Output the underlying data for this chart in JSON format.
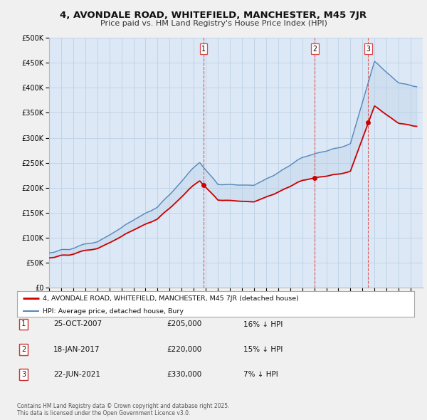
{
  "title1": "4, AVONDALE ROAD, WHITEFIELD, MANCHESTER, M45 7JR",
  "title2": "Price paid vs. HM Land Registry's House Price Index (HPI)",
  "ylim": [
    0,
    500000
  ],
  "yticks": [
    0,
    50000,
    100000,
    150000,
    200000,
    250000,
    300000,
    350000,
    400000,
    450000,
    500000
  ],
  "ytick_labels": [
    "£0",
    "£50K",
    "£100K",
    "£150K",
    "£200K",
    "£250K",
    "£300K",
    "£350K",
    "£400K",
    "£450K",
    "£500K"
  ],
  "background_color": "#f0f0f0",
  "plot_bg": "#dce8f5",
  "grid_color": "#c0d4e8",
  "sale_color": "#cc0000",
  "hpi_color": "#5588bb",
  "fill_color": "#b8d0e8",
  "sale_dates": [
    2007.82,
    2017.05,
    2021.47
  ],
  "sale_prices": [
    205000,
    220000,
    330000
  ],
  "sale_labels": [
    "1",
    "2",
    "3"
  ],
  "vline_color": "#dd4444",
  "legend_sale": "4, AVONDALE ROAD, WHITEFIELD, MANCHESTER, M45 7JR (detached house)",
  "legend_hpi": "HPI: Average price, detached house, Bury",
  "table_rows": [
    [
      "1",
      "25-OCT-2007",
      "£205,000",
      "16% ↓ HPI"
    ],
    [
      "2",
      "18-JAN-2017",
      "£220,000",
      "15% ↓ HPI"
    ],
    [
      "3",
      "22-JUN-2021",
      "£330,000",
      "7% ↓ HPI"
    ]
  ],
  "footer": "Contains HM Land Registry data © Crown copyright and database right 2025.\nThis data is licensed under the Open Government Licence v3.0.",
  "xmin": 1995,
  "xmax": 2026
}
